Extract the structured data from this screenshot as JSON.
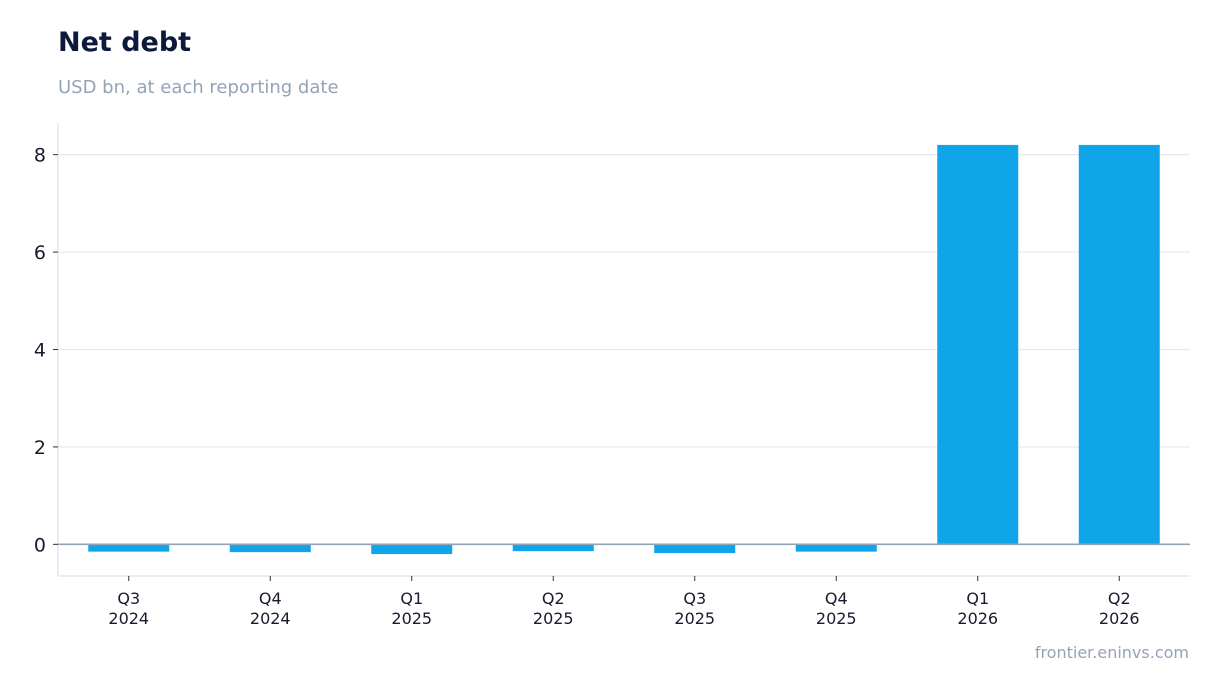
{
  "header": {
    "title": "Net debt",
    "subtitle": "USD bn, at each reporting date"
  },
  "footer": {
    "source": "frontier.eninvs.com"
  },
  "colors": {
    "bar": "#10a5e8",
    "title": "#0b1a3c",
    "muted": "#94a3b8",
    "grid": "#e2e8f0",
    "zero_line": "#94a3b8",
    "tick_text": "#1a1a2e"
  },
  "chart_data": {
    "type": "bar",
    "title": "Net debt",
    "subtitle": "USD bn, at each reporting date",
    "categories": [
      [
        "Q3",
        "2024"
      ],
      [
        "Q4",
        "2024"
      ],
      [
        "Q1",
        "2025"
      ],
      [
        "Q2",
        "2025"
      ],
      [
        "Q3",
        "2025"
      ],
      [
        "Q4",
        "2025"
      ],
      [
        "Q1",
        "2026"
      ],
      [
        "Q2",
        "2026"
      ]
    ],
    "values": [
      -0.15,
      -0.16,
      -0.2,
      -0.14,
      -0.18,
      -0.15,
      8.2,
      8.2
    ],
    "ylim": [
      -0.65,
      8.65
    ],
    "yticks": [
      0,
      2,
      4,
      6,
      8
    ],
    "grid": true,
    "legend": "none"
  }
}
